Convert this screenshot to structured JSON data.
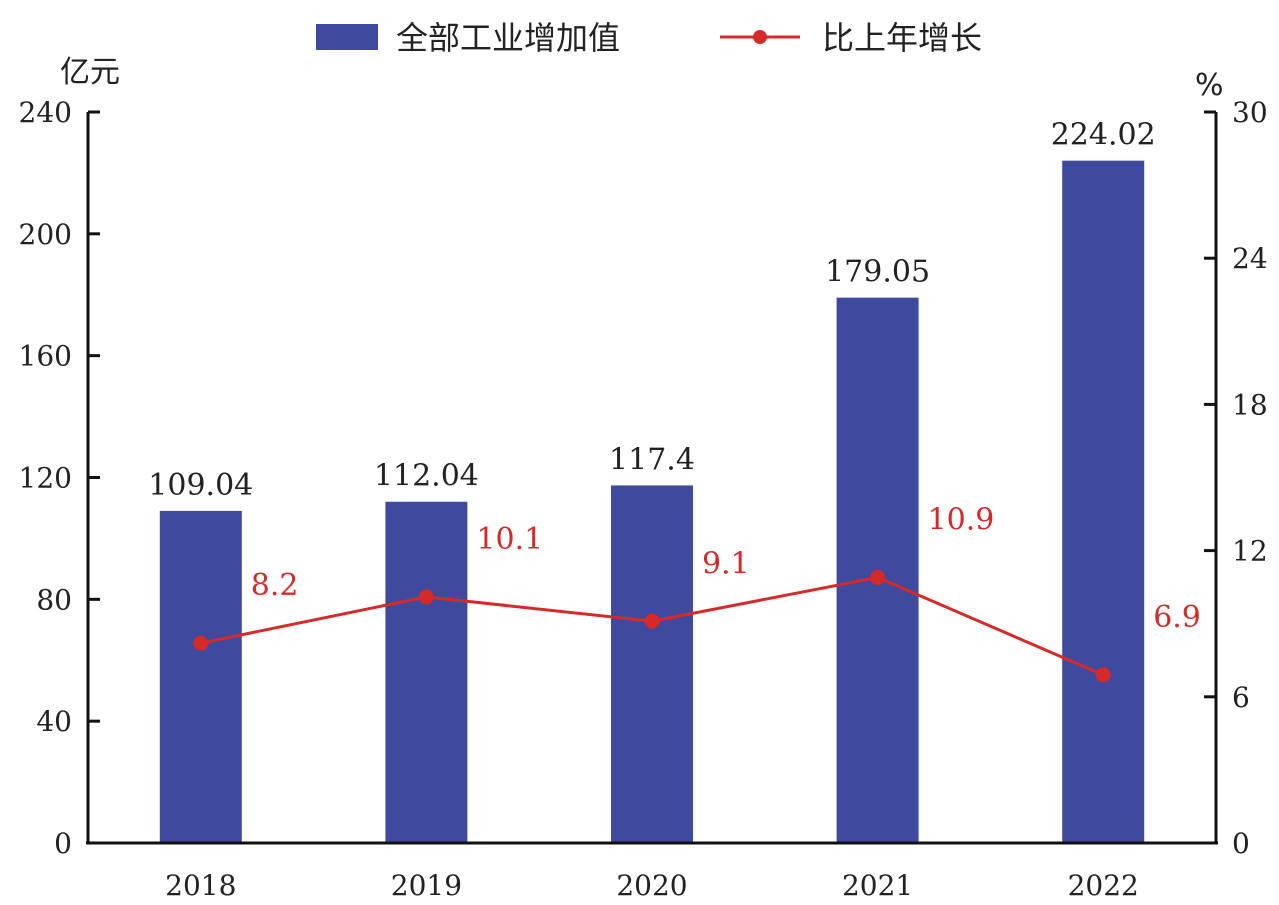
{
  "colors": {
    "bar": "#3f4a9e",
    "line": "#d42a2a",
    "axis": "#111111",
    "text": "#222222"
  },
  "chart_data": {
    "type": "bar",
    "categories": [
      "2018",
      "2019",
      "2020",
      "2021",
      "2022"
    ],
    "series": [
      {
        "name": "全部工业增加值",
        "type": "bar",
        "axis": "left",
        "values": [
          109.04,
          112.04,
          117.4,
          179.05,
          224.02
        ],
        "labels": [
          "109.04",
          "112.04",
          "117.4",
          "179.05",
          "224.02"
        ]
      },
      {
        "name": "比上年增长",
        "type": "line",
        "axis": "right",
        "values": [
          8.2,
          10.1,
          9.1,
          10.9,
          6.9
        ],
        "labels": [
          "8.2",
          "10.1",
          "9.1",
          "10.9",
          "6.9"
        ]
      }
    ],
    "y_left": {
      "unit": "亿元",
      "ylim": [
        0,
        240
      ],
      "ticks": [
        "0",
        "40",
        "80",
        "120",
        "160",
        "200",
        "240"
      ]
    },
    "y_right": {
      "unit": "%",
      "ylim": [
        0,
        30
      ],
      "ticks": [
        "0",
        "6",
        "12",
        "18",
        "24",
        "30"
      ]
    },
    "legend_position": "top-center",
    "grid": false
  }
}
